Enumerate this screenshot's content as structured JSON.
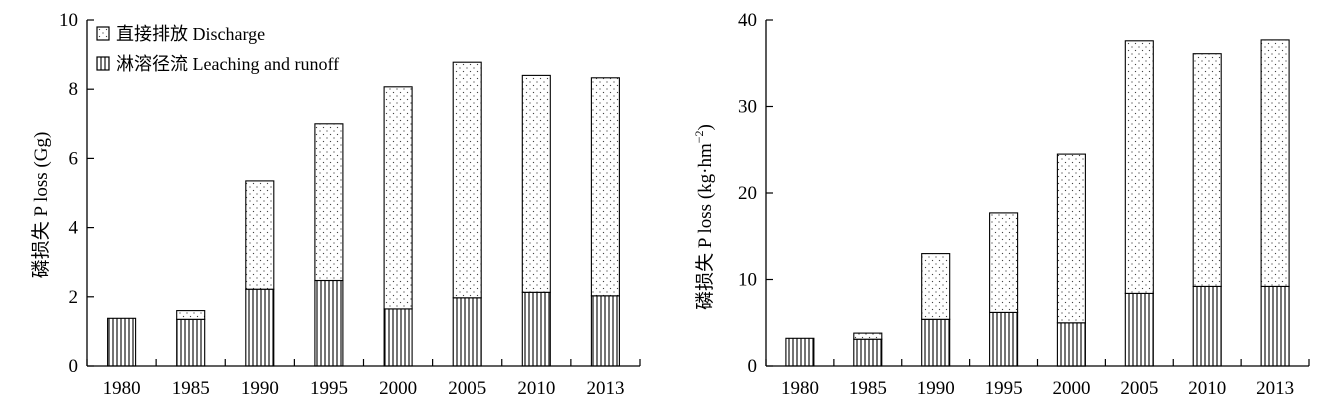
{
  "chart_data": [
    {
      "type": "bar",
      "stacked": true,
      "categories": [
        "1980",
        "1985",
        "1990",
        "1995",
        "2000",
        "2005",
        "2010",
        "2013"
      ],
      "series": [
        {
          "name": "淋溶径流 Leaching and runoff",
          "pattern": "vertical-stripes",
          "values": [
            1.38,
            1.35,
            2.22,
            2.47,
            1.65,
            1.97,
            2.13,
            2.03
          ]
        },
        {
          "name": "直接排放 Discharge",
          "pattern": "dots",
          "values": [
            0,
            0.25,
            3.13,
            4.53,
            6.42,
            6.81,
            6.27,
            6.3
          ]
        }
      ],
      "xlabel": "",
      "ylabel": "磷损失 P loss (Gg)",
      "ylim": [
        0,
        10
      ],
      "yticks": [
        "0",
        "2",
        "4",
        "6",
        "8",
        "10"
      ],
      "legend": "top-left",
      "grid": false
    },
    {
      "type": "bar",
      "stacked": true,
      "categories": [
        "1980",
        "1985",
        "1990",
        "1995",
        "2000",
        "2005",
        "2010",
        "2013"
      ],
      "series": [
        {
          "name": "淋溶径流 Leaching and runoff",
          "pattern": "vertical-stripes",
          "values": [
            3.2,
            3.1,
            5.4,
            6.2,
            5.0,
            8.4,
            9.2,
            9.2
          ]
        },
        {
          "name": "直接排放 Discharge",
          "pattern": "dots",
          "values": [
            0,
            0.7,
            7.6,
            11.5,
            19.5,
            29.2,
            26.9,
            28.5
          ]
        }
      ],
      "xlabel": "",
      "ylabel": "磷损失 P loss (kg·hm",
      "ylabel_sup": "−2",
      "ylabel_end": ")",
      "ylim": [
        0,
        40
      ],
      "yticks": [
        "0",
        "10",
        "20",
        "30",
        "40"
      ],
      "grid": false
    }
  ],
  "colors": {
    "stroke": "#000000",
    "background": "#ffffff"
  }
}
